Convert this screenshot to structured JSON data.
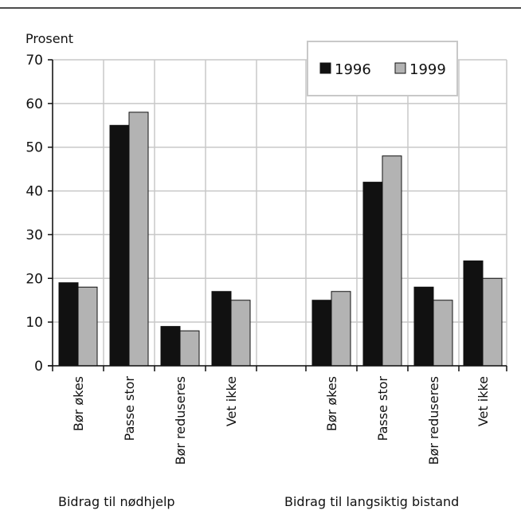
{
  "chart_data": {
    "type": "bar",
    "ylabel": "Prosent",
    "ylim": [
      0,
      70
    ],
    "yticks": [
      0,
      10,
      20,
      30,
      40,
      50,
      60,
      70
    ],
    "grid": true,
    "legend_position": "top-right",
    "groups": [
      {
        "label": "Bidrag til nødhjelp",
        "categories": [
          "Bør økes",
          "Passe stor",
          "Bør reduseres",
          "Vet ikke"
        ]
      },
      {
        "label": "Bidrag til langsiktig bistand",
        "categories": [
          "Bør økes",
          "Passe stor",
          "Bør reduseres",
          "Vet ikke"
        ]
      }
    ],
    "series": [
      {
        "name": "1996",
        "color": "#111111",
        "values": [
          19,
          55,
          9,
          17,
          15,
          42,
          18,
          24
        ]
      },
      {
        "name": "1999",
        "color": "#b3b3b3",
        "values": [
          18,
          58,
          8,
          15,
          17,
          48,
          15,
          20
        ]
      }
    ]
  }
}
